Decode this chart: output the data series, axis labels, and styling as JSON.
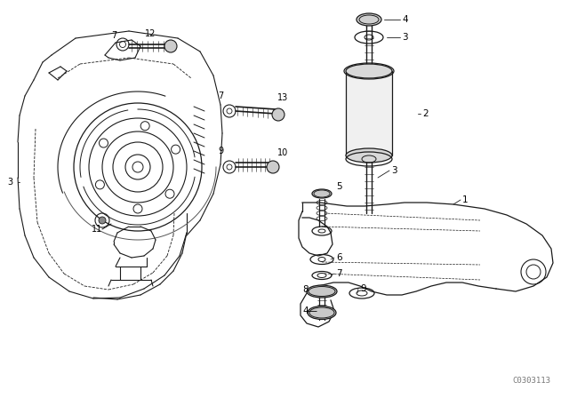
{
  "bg_color": "#ffffff",
  "line_color": "#1a1a1a",
  "figure_width": 6.4,
  "figure_height": 4.48,
  "dpi": 100,
  "watermark": "C0303113",
  "watermark_fontsize": 6.5
}
